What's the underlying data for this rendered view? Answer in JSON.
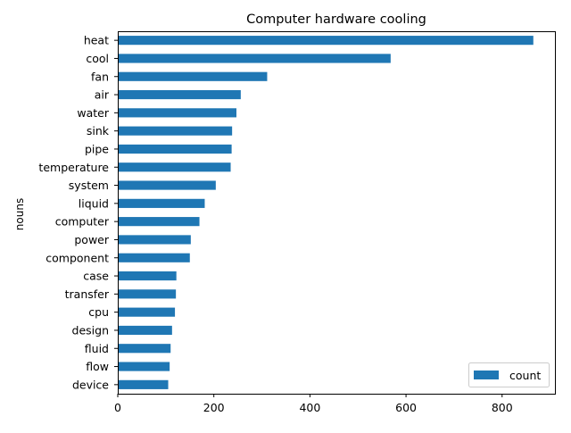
{
  "chart_data": {
    "type": "bar",
    "orientation": "horizontal",
    "title": "Computer hardware cooling",
    "xlabel": "",
    "ylabel": "nouns",
    "xlim": [
      0,
      910
    ],
    "xticks": [
      0,
      200,
      400,
      600,
      800
    ],
    "categories": [
      "heat",
      "cool",
      "fan",
      "air",
      "water",
      "sink",
      "pipe",
      "temperature",
      "system",
      "liquid",
      "computer",
      "power",
      "component",
      "case",
      "transfer",
      "cpu",
      "design",
      "fluid",
      "flow",
      "device"
    ],
    "series": [
      {
        "name": "count",
        "values": [
          865,
          568,
          311,
          256,
          247,
          238,
          237,
          235,
          204,
          181,
          170,
          152,
          150,
          122,
          121,
          119,
          113,
          110,
          108,
          105
        ]
      }
    ],
    "bar_color": "#1f77b4",
    "grid": false,
    "legend_position": "lower-right"
  }
}
